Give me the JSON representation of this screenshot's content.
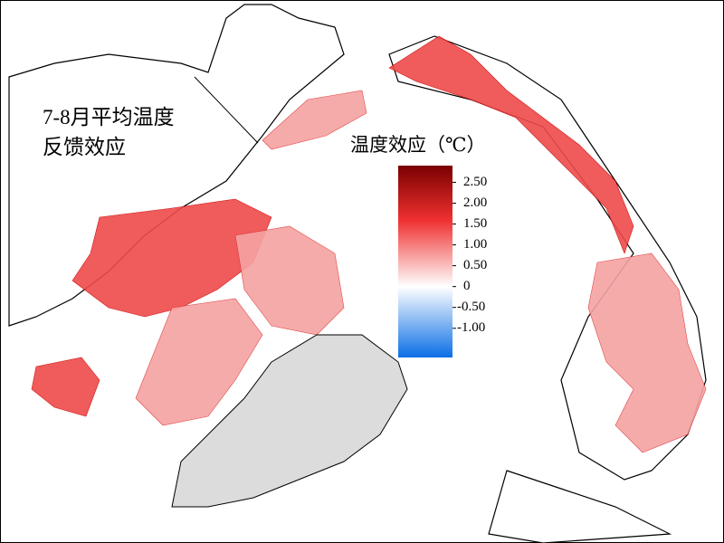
{
  "title": [
    "7-8月平均温度",
    "反馈效应"
  ],
  "legend": {
    "title": "温度效应（℃）",
    "lim": [
      -1.7,
      2.9
    ],
    "colors": [
      "#0a6ee6",
      "#ffffff",
      "#f03030",
      "#7a0000"
    ],
    "ticks": [
      {
        "value": 2.5,
        "label": "2.50"
      },
      {
        "value": 2,
        "label": "2.00"
      },
      {
        "value": 1.5,
        "label": "1.50"
      },
      {
        "value": 1,
        "label": "1.00"
      },
      {
        "value": 0.5,
        "label": "0.50"
      },
      0,
      {
        "value": -0.5,
        "label": "-0.50"
      },
      {
        "value": -1,
        "label": "-1.00"
      }
    ]
  }
}
